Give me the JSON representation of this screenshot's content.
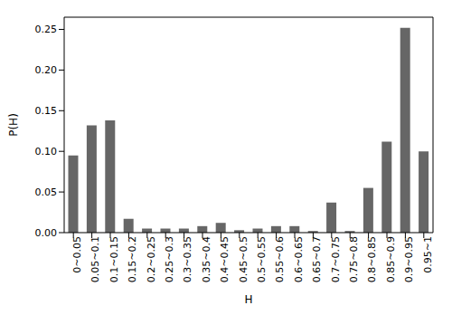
{
  "chart_data": {
    "type": "bar",
    "x_label": "H",
    "y_label": "P(H)",
    "categories": [
      "0~0.05",
      "0.05~0.1",
      "0.1~0.15",
      "0.15~0.2",
      "0.2~0.25",
      "0.25~0.3",
      "0.3~0.35",
      "0.35~0.4",
      "0.4~0.45",
      "0.45~0.5",
      "0.5~0.55",
      "0.55~0.6",
      "0.6~0.65",
      "0.65~0.7",
      "0.7~0.75",
      "0.75~0.8",
      "0.8~0.85",
      "0.85~0.9",
      "0.9~0.95",
      "0.95~1"
    ],
    "values": [
      0.095,
      0.132,
      0.138,
      0.017,
      0.005,
      0.005,
      0.005,
      0.008,
      0.012,
      0.003,
      0.005,
      0.008,
      0.008,
      0.002,
      0.037,
      0.002,
      0.055,
      0.112,
      0.252,
      0.1
    ],
    "color": "#666666",
    "ylim": [
      0,
      0.265
    ],
    "yticks": [
      {
        "value": 0,
        "label": "0.00"
      },
      {
        "value": 0.05,
        "label": "0.05"
      },
      {
        "value": 0.1,
        "label": "0.10"
      },
      {
        "value": 0.15,
        "label": "0.15"
      },
      {
        "value": 0.2,
        "label": "0.20"
      },
      {
        "value": 0.25,
        "label": "0.25"
      }
    ],
    "grid": false
  }
}
